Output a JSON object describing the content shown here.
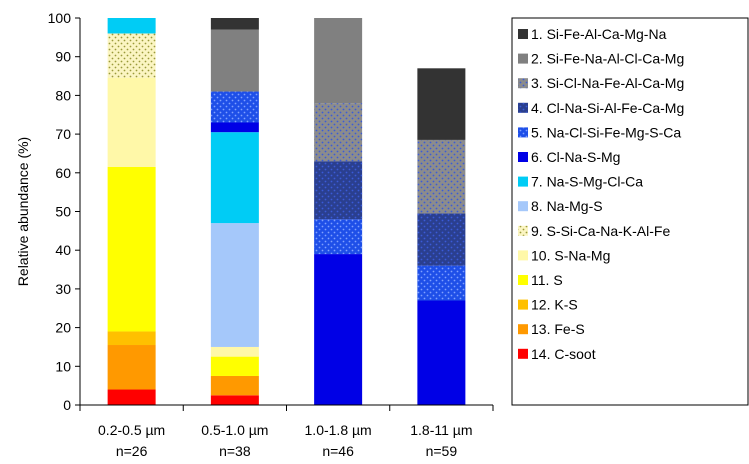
{
  "chart_data": {
    "type": "bar",
    "stacked": true,
    "title": "",
    "xlabel": "",
    "ylabel": "Relative abundance (%)",
    "ylim": [
      0,
      100
    ],
    "yticks": [
      0,
      10,
      20,
      30,
      40,
      50,
      60,
      70,
      80,
      90,
      100
    ],
    "grid": false,
    "legend_position": "right",
    "categories": [
      {
        "label": "0.2-0.5 µm",
        "n": "n=26"
      },
      {
        "label": "0.5-1.0 µm",
        "n": "n=38"
      },
      {
        "label": "1.0-1.8 µm",
        "n": "n=46"
      },
      {
        "label": "1.8-11 µm",
        "n": "n=59"
      }
    ],
    "series": [
      {
        "name": "1. Si-Fe-Al-Ca-Mg-Na",
        "color": "#333333",
        "pattern": "solid",
        "values": [
          0,
          3,
          0,
          18.5
        ]
      },
      {
        "name": "2. Si-Fe-Na-Al-Cl-Ca-Mg",
        "color": "#808080",
        "pattern": "solid",
        "values": [
          0,
          16,
          22,
          0
        ]
      },
      {
        "name": "3. Si-Cl-Na-Fe-Al-Ca-Mg",
        "color": "#8c8c8c",
        "pattern": "dots-blue",
        "values": [
          0,
          0,
          15,
          19
        ]
      },
      {
        "name": "4. Cl-Na-Si-Al-Fe-Ca-Mg",
        "color": "#2a3f8f",
        "pattern": "dots-blue",
        "values": [
          0,
          0,
          15,
          13.5
        ]
      },
      {
        "name": "5. Na-Cl-Si-Fe-Mg-S-Ca",
        "color": "#1e4fe8",
        "pattern": "dots-light",
        "values": [
          0,
          8,
          9,
          9
        ]
      },
      {
        "name": "6. Cl-Na-S-Mg",
        "color": "#0000e6",
        "pattern": "solid",
        "values": [
          0,
          2.5,
          39,
          27
        ]
      },
      {
        "name": "7. Na-S-Mg-Cl-Ca",
        "color": "#00ccf5",
        "pattern": "solid",
        "values": [
          4,
          23.5,
          0,
          0
        ]
      },
      {
        "name": "8. Na-Mg-S",
        "color": "#a5c8fa",
        "pattern": "solid",
        "values": [
          0,
          32,
          0,
          0
        ]
      },
      {
        "name": "9. S-Si-Ca-Na-K-Al-Fe",
        "color": "#fbf5c2",
        "pattern": "dots-olive",
        "values": [
          11.5,
          0,
          0,
          0
        ]
      },
      {
        "name": "10. S-Na-Mg",
        "color": "#fff8a8",
        "pattern": "solid",
        "values": [
          23,
          2.5,
          0,
          0
        ]
      },
      {
        "name": "11. S",
        "color": "#ffff00",
        "pattern": "solid",
        "values": [
          42.5,
          5,
          0,
          0
        ]
      },
      {
        "name": "12. K-S",
        "color": "#ffc000",
        "pattern": "solid",
        "values": [
          3.5,
          0,
          0,
          0
        ]
      },
      {
        "name": "13. Fe-S",
        "color": "#ff9900",
        "pattern": "solid",
        "values": [
          11.5,
          5,
          0,
          0
        ]
      },
      {
        "name": "14. C-soot",
        "color": "#ff0000",
        "pattern": "solid",
        "values": [
          4,
          2.5,
          0,
          0
        ]
      }
    ]
  }
}
